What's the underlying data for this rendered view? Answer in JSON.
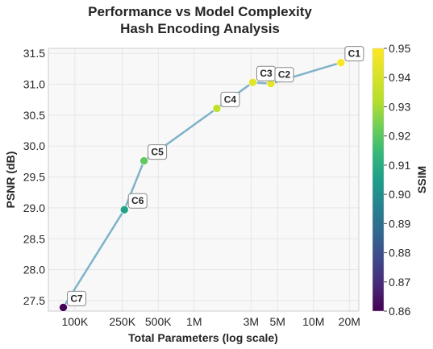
{
  "chart_data": {
    "type": "scatter",
    "title": "Performance vs Model Complexity",
    "subtitle": "Hash Encoding Analysis",
    "xlabel": "Total Parameters (log scale)",
    "ylabel": "PSNR (dB)",
    "colorbar_label": "SSIM",
    "x_scale": "log",
    "xlim": [
      60000,
      24000000
    ],
    "ylim": [
      27.33,
      31.58
    ],
    "x_ticks": [
      {
        "value": 100000,
        "label": "100K"
      },
      {
        "value": 250000,
        "label": "250K"
      },
      {
        "value": 500000,
        "label": "500K"
      },
      {
        "value": 1000000,
        "label": "1M"
      },
      {
        "value": 3000000,
        "label": "3M"
      },
      {
        "value": 5000000,
        "label": "5M"
      },
      {
        "value": 10000000,
        "label": "10M"
      },
      {
        "value": 20000000,
        "label": "20M"
      }
    ],
    "y_ticks": [
      {
        "value": 27.5,
        "label": "27.5"
      },
      {
        "value": 28.0,
        "label": "28.0"
      },
      {
        "value": 28.5,
        "label": "28.5"
      },
      {
        "value": 29.0,
        "label": "29.0"
      },
      {
        "value": 29.5,
        "label": "29.5"
      },
      {
        "value": 30.0,
        "label": "30.0"
      },
      {
        "value": 30.5,
        "label": "30.5"
      },
      {
        "value": 31.0,
        "label": "31.0"
      },
      {
        "value": 31.5,
        "label": "31.5"
      }
    ],
    "colorbar_range": [
      0.86,
      0.95
    ],
    "colorbar_ticks": [
      {
        "value": 0.86,
        "label": "0.86"
      },
      {
        "value": 0.87,
        "label": "0.87"
      },
      {
        "value": 0.88,
        "label": "0.88"
      },
      {
        "value": 0.89,
        "label": "0.89"
      },
      {
        "value": 0.9,
        "label": "0.90"
      },
      {
        "value": 0.91,
        "label": "0.91"
      },
      {
        "value": 0.92,
        "label": "0.92"
      },
      {
        "value": 0.93,
        "label": "0.93"
      },
      {
        "value": 0.94,
        "label": "0.94"
      },
      {
        "value": 0.95,
        "label": "0.95"
      }
    ],
    "colormap": "viridis",
    "grid": true,
    "connector_color": "#7fb3c9",
    "points": [
      {
        "label": "C7",
        "x": 80000,
        "y": 27.39,
        "ssim": 0.861
      },
      {
        "label": "C6",
        "x": 260000,
        "y": 28.97,
        "ssim": 0.906
      },
      {
        "label": "C5",
        "x": 380000,
        "y": 29.76,
        "ssim": 0.921
      },
      {
        "label": "C4",
        "x": 1550000,
        "y": 30.61,
        "ssim": 0.935
      },
      {
        "label": "C3",
        "x": 3100000,
        "y": 31.03,
        "ssim": 0.943
      },
      {
        "label": "C2",
        "x": 4400000,
        "y": 31.01,
        "ssim": 0.944
      },
      {
        "label": "C1",
        "x": 17000000,
        "y": 31.35,
        "ssim": 0.949
      }
    ]
  }
}
